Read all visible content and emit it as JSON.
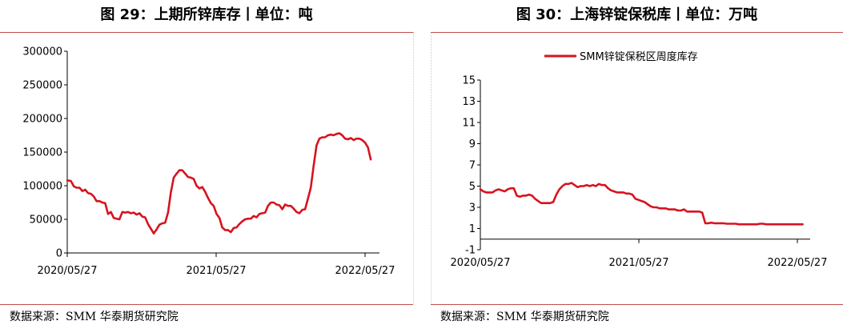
{
  "left_panel": {
    "title": "图 29：上期所锌库存丨单位：吨",
    "source": "数据来源：SMM 华泰期货研究院"
  },
  "right_panel": {
    "title": "图 30：上海锌锭保税库丨单位：万吨",
    "source": "数据来源：SMM 华泰期货研究院"
  },
  "colors": {
    "line": "#d7131f",
    "divider": "#c0504d"
  },
  "chart_data": [
    {
      "type": "line",
      "title": "",
      "xlabel": "",
      "ylabel": "",
      "ylim": [
        0,
        300000
      ],
      "yticks": [
        0,
        50000,
        100000,
        150000,
        200000,
        250000,
        300000
      ],
      "ytick_labels": [
        "0",
        "50000",
        "100000",
        "150000",
        "200000",
        "250000",
        "300000"
      ],
      "xtick_labels": [
        "2020/05/27",
        "2021/05/27",
        "2022/05/27"
      ],
      "xtick_dates": [
        "2020-05-27",
        "2021-05-27",
        "2022-05-27"
      ],
      "grid": false,
      "legend": false,
      "series": [
        {
          "name": "",
          "points": [
            [
              "2020-05-27",
              108000
            ],
            [
              "2020-06-05",
              107000
            ],
            [
              "2020-06-12",
              99000
            ],
            [
              "2020-06-19",
              97000
            ],
            [
              "2020-06-26",
              97000
            ],
            [
              "2020-07-03",
              92000
            ],
            [
              "2020-07-10",
              94000
            ],
            [
              "2020-07-17",
              89000
            ],
            [
              "2020-07-24",
              88000
            ],
            [
              "2020-07-31",
              84000
            ],
            [
              "2020-08-07",
              77000
            ],
            [
              "2020-08-14",
              77000
            ],
            [
              "2020-08-21",
              75000
            ],
            [
              "2020-08-28",
              74000
            ],
            [
              "2020-09-04",
              58000
            ],
            [
              "2020-09-11",
              61000
            ],
            [
              "2020-09-18",
              52000
            ],
            [
              "2020-09-25",
              51000
            ],
            [
              "2020-10-02",
              50000
            ],
            [
              "2020-10-09",
              61000
            ],
            [
              "2020-10-16",
              60000
            ],
            [
              "2020-10-23",
              61000
            ],
            [
              "2020-10-30",
              59000
            ],
            [
              "2020-11-06",
              60000
            ],
            [
              "2020-11-13",
              57000
            ],
            [
              "2020-11-20",
              59000
            ],
            [
              "2020-11-27",
              54000
            ],
            [
              "2020-12-04",
              53000
            ],
            [
              "2020-12-11",
              43000
            ],
            [
              "2020-12-18",
              36000
            ],
            [
              "2020-12-25",
              29000
            ],
            [
              "2021-01-01",
              35000
            ],
            [
              "2021-01-08",
              42000
            ],
            [
              "2021-01-15",
              44000
            ],
            [
              "2021-01-22",
              45000
            ],
            [
              "2021-01-29",
              60000
            ],
            [
              "2021-02-05",
              90000
            ],
            [
              "2021-02-12",
              112000
            ],
            [
              "2021-02-19",
              118000
            ],
            [
              "2021-02-26",
              123000
            ],
            [
              "2021-03-05",
              123000
            ],
            [
              "2021-03-12",
              118000
            ],
            [
              "2021-03-19",
              113000
            ],
            [
              "2021-03-26",
              112000
            ],
            [
              "2021-04-02",
              110000
            ],
            [
              "2021-04-09",
              100000
            ],
            [
              "2021-04-16",
              96000
            ],
            [
              "2021-04-23",
              98000
            ],
            [
              "2021-04-30",
              91000
            ],
            [
              "2021-05-07",
              82000
            ],
            [
              "2021-05-14",
              74000
            ],
            [
              "2021-05-21",
              70000
            ],
            [
              "2021-05-28",
              58000
            ],
            [
              "2021-06-04",
              52000
            ],
            [
              "2021-06-11",
              38000
            ],
            [
              "2021-06-18",
              34000
            ],
            [
              "2021-06-25",
              34000
            ],
            [
              "2021-07-02",
              31000
            ],
            [
              "2021-07-09",
              37000
            ],
            [
              "2021-07-16",
              38000
            ],
            [
              "2021-07-23",
              43000
            ],
            [
              "2021-07-30",
              47000
            ],
            [
              "2021-08-06",
              50000
            ],
            [
              "2021-08-13",
              51000
            ],
            [
              "2021-08-20",
              51000
            ],
            [
              "2021-08-27",
              55000
            ],
            [
              "2021-09-03",
              53000
            ],
            [
              "2021-09-10",
              58000
            ],
            [
              "2021-09-17",
              59000
            ],
            [
              "2021-09-24",
              60000
            ],
            [
              "2021-10-01",
              70000
            ],
            [
              "2021-10-08",
              75000
            ],
            [
              "2021-10-15",
              75000
            ],
            [
              "2021-10-22",
              72000
            ],
            [
              "2021-10-29",
              71000
            ],
            [
              "2021-11-05",
              65000
            ],
            [
              "2021-11-12",
              72000
            ],
            [
              "2021-11-19",
              70000
            ],
            [
              "2021-11-26",
              70000
            ],
            [
              "2021-12-03",
              66000
            ],
            [
              "2021-12-10",
              61000
            ],
            [
              "2021-12-17",
              59000
            ],
            [
              "2021-12-24",
              64000
            ],
            [
              "2021-12-31",
              65000
            ],
            [
              "2022-01-07",
              81000
            ],
            [
              "2022-01-14",
              97000
            ],
            [
              "2022-01-21",
              130000
            ],
            [
              "2022-01-28",
              160000
            ],
            [
              "2022-02-04",
              170000
            ],
            [
              "2022-02-11",
              172000
            ],
            [
              "2022-02-18",
              172000
            ],
            [
              "2022-02-25",
              175000
            ],
            [
              "2022-03-04",
              176000
            ],
            [
              "2022-03-11",
              175000
            ],
            [
              "2022-03-18",
              177000
            ],
            [
              "2022-03-25",
              178000
            ],
            [
              "2022-04-01",
              175000
            ],
            [
              "2022-04-08",
              170000
            ],
            [
              "2022-04-15",
              169000
            ],
            [
              "2022-04-22",
              171000
            ],
            [
              "2022-04-29",
              168000
            ],
            [
              "2022-05-06",
              170000
            ],
            [
              "2022-05-13",
              170000
            ],
            [
              "2022-05-20",
              168000
            ],
            [
              "2022-05-27",
              164000
            ],
            [
              "2022-06-03",
              157000
            ],
            [
              "2022-06-10",
              139000
            ]
          ]
        }
      ]
    },
    {
      "type": "line",
      "title": "",
      "xlabel": "",
      "ylabel": "",
      "ylim": [
        -1,
        15
      ],
      "yticks": [
        -1,
        1,
        3,
        5,
        7,
        9,
        11,
        13,
        15
      ],
      "ytick_labels": [
        "-1",
        "1",
        "3",
        "5",
        "7",
        "9",
        "11",
        "13",
        "15"
      ],
      "xtick_labels": [
        "2020/05/27",
        "2021/05/27",
        "2022/05/27"
      ],
      "xtick_dates": [
        "2020-05-27",
        "2021-05-27",
        "2022-05-27"
      ],
      "grid": false,
      "legend": "top-center",
      "series": [
        {
          "name": "SMM锌锭保税区周度库存",
          "points": [
            [
              "2020-05-27",
              4.7
            ],
            [
              "2020-06-03",
              4.5
            ],
            [
              "2020-06-10",
              4.4
            ],
            [
              "2020-06-17",
              4.4
            ],
            [
              "2020-06-24",
              4.4
            ],
            [
              "2020-07-01",
              4.6
            ],
            [
              "2020-07-08",
              4.7
            ],
            [
              "2020-07-15",
              4.6
            ],
            [
              "2020-07-22",
              4.5
            ],
            [
              "2020-07-29",
              4.7
            ],
            [
              "2020-08-05",
              4.8
            ],
            [
              "2020-08-12",
              4.8
            ],
            [
              "2020-08-19",
              4.1
            ],
            [
              "2020-08-26",
              4.0
            ],
            [
              "2020-09-02",
              4.1
            ],
            [
              "2020-09-09",
              4.1
            ],
            [
              "2020-09-16",
              4.2
            ],
            [
              "2020-09-23",
              4.1
            ],
            [
              "2020-09-30",
              3.8
            ],
            [
              "2020-10-07",
              3.6
            ],
            [
              "2020-10-14",
              3.4
            ],
            [
              "2020-10-21",
              3.4
            ],
            [
              "2020-10-28",
              3.4
            ],
            [
              "2020-11-04",
              3.4
            ],
            [
              "2020-11-11",
              3.5
            ],
            [
              "2020-11-18",
              4.2
            ],
            [
              "2020-11-25",
              4.7
            ],
            [
              "2020-12-02",
              5.0
            ],
            [
              "2020-12-09",
              5.2
            ],
            [
              "2020-12-16",
              5.2
            ],
            [
              "2020-12-23",
              5.3
            ],
            [
              "2020-12-30",
              5.1
            ],
            [
              "2021-01-06",
              4.9
            ],
            [
              "2021-01-13",
              5.0
            ],
            [
              "2021-01-20",
              5.0
            ],
            [
              "2021-01-27",
              5.1
            ],
            [
              "2021-02-03",
              5.0
            ],
            [
              "2021-02-10",
              5.1
            ],
            [
              "2021-02-17",
              5.0
            ],
            [
              "2021-02-24",
              5.2
            ],
            [
              "2021-03-03",
              5.1
            ],
            [
              "2021-03-10",
              5.1
            ],
            [
              "2021-03-17",
              4.8
            ],
            [
              "2021-03-24",
              4.6
            ],
            [
              "2021-03-31",
              4.5
            ],
            [
              "2021-04-07",
              4.4
            ],
            [
              "2021-04-14",
              4.4
            ],
            [
              "2021-04-21",
              4.4
            ],
            [
              "2021-04-28",
              4.3
            ],
            [
              "2021-05-05",
              4.3
            ],
            [
              "2021-05-12",
              4.2
            ],
            [
              "2021-05-19",
              3.8
            ],
            [
              "2021-05-26",
              3.7
            ],
            [
              "2021-06-02",
              3.6
            ],
            [
              "2021-06-09",
              3.5
            ],
            [
              "2021-06-16",
              3.3
            ],
            [
              "2021-06-23",
              3.1
            ],
            [
              "2021-06-30",
              3.0
            ],
            [
              "2021-07-07",
              3.0
            ],
            [
              "2021-07-14",
              2.9
            ],
            [
              "2021-07-21",
              2.9
            ],
            [
              "2021-07-28",
              2.9
            ],
            [
              "2021-08-04",
              2.8
            ],
            [
              "2021-08-11",
              2.8
            ],
            [
              "2021-08-18",
              2.8
            ],
            [
              "2021-08-25",
              2.7
            ],
            [
              "2021-09-01",
              2.7
            ],
            [
              "2021-09-08",
              2.8
            ],
            [
              "2021-09-15",
              2.6
            ],
            [
              "2021-09-22",
              2.6
            ],
            [
              "2021-09-29",
              2.6
            ],
            [
              "2021-10-06",
              2.6
            ],
            [
              "2021-10-13",
              2.6
            ],
            [
              "2021-10-20",
              2.5
            ],
            [
              "2021-10-27",
              1.5
            ],
            [
              "2021-11-03",
              1.5
            ],
            [
              "2021-11-10",
              1.55
            ],
            [
              "2021-11-17",
              1.5
            ],
            [
              "2021-11-24",
              1.5
            ],
            [
              "2021-12-01",
              1.5
            ],
            [
              "2021-12-08",
              1.5
            ],
            [
              "2021-12-15",
              1.45
            ],
            [
              "2021-12-22",
              1.45
            ],
            [
              "2021-12-29",
              1.45
            ],
            [
              "2022-01-05",
              1.45
            ],
            [
              "2022-01-12",
              1.4
            ],
            [
              "2022-01-19",
              1.4
            ],
            [
              "2022-01-26",
              1.4
            ],
            [
              "2022-02-02",
              1.4
            ],
            [
              "2022-02-09",
              1.4
            ],
            [
              "2022-02-16",
              1.4
            ],
            [
              "2022-02-23",
              1.4
            ],
            [
              "2022-03-02",
              1.45
            ],
            [
              "2022-03-09",
              1.45
            ],
            [
              "2022-03-16",
              1.4
            ],
            [
              "2022-03-23",
              1.4
            ],
            [
              "2022-03-30",
              1.4
            ],
            [
              "2022-04-06",
              1.4
            ],
            [
              "2022-04-13",
              1.4
            ],
            [
              "2022-04-20",
              1.4
            ],
            [
              "2022-04-27",
              1.4
            ],
            [
              "2022-05-04",
              1.4
            ],
            [
              "2022-05-11",
              1.4
            ],
            [
              "2022-05-18",
              1.4
            ],
            [
              "2022-05-25",
              1.4
            ],
            [
              "2022-06-01",
              1.4
            ],
            [
              "2022-06-08",
              1.4
            ]
          ]
        }
      ]
    }
  ]
}
